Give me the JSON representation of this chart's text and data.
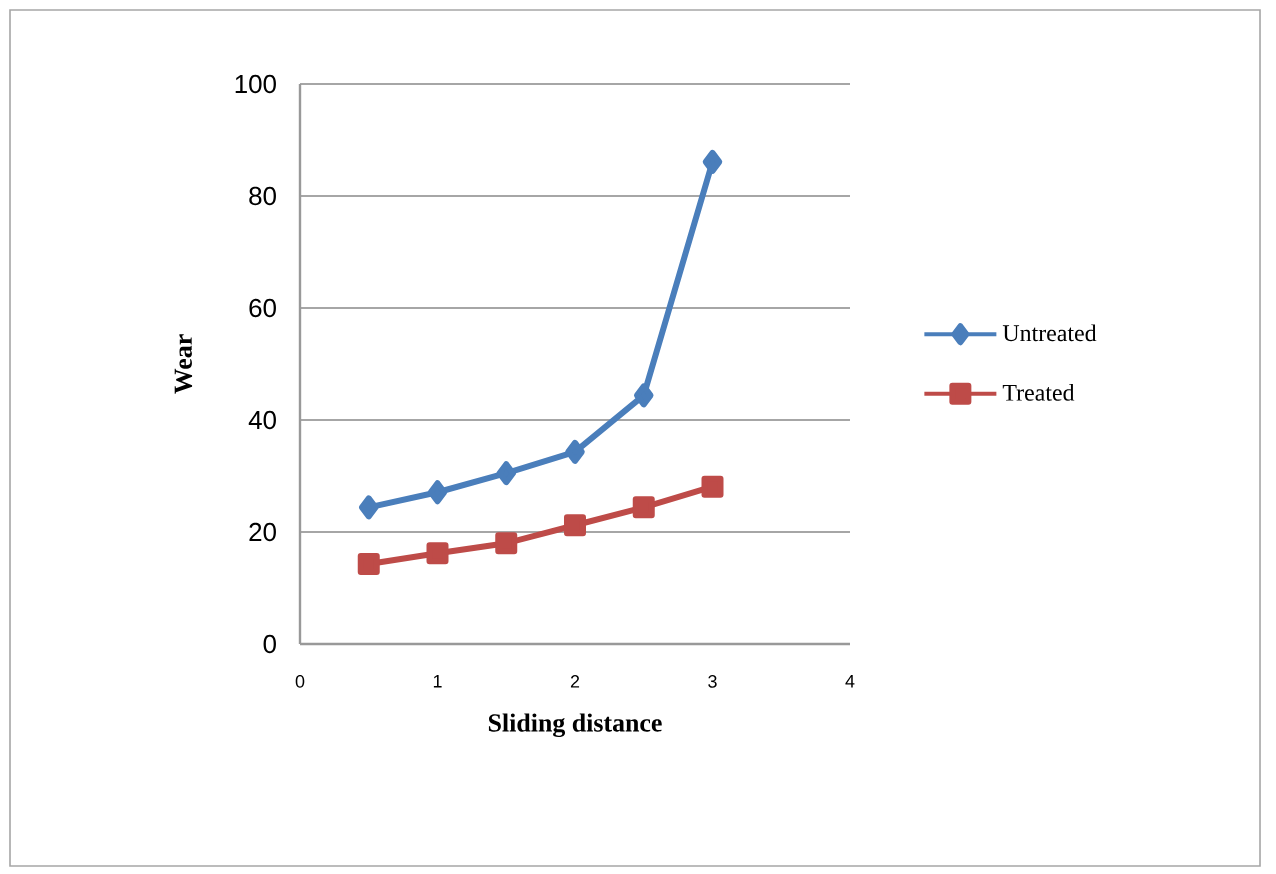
{
  "chart_data": {
    "type": "line",
    "xlabel": "Sliding distance",
    "ylabel": "Wear",
    "xlim": [
      0,
      4
    ],
    "xticks": [
      0,
      1,
      2,
      3,
      4
    ],
    "ylim": [
      0,
      100
    ],
    "yticks": [
      0,
      20,
      40,
      60,
      80,
      100
    ],
    "grid": "y",
    "legend": "right",
    "line_style": "solid",
    "series": [
      {
        "name": "Untreated",
        "color": "#4a7ebb",
        "marker": "diamond",
        "x": [
          0.5,
          1,
          1.5,
          2,
          2.5,
          3
        ],
        "values": [
          24.4,
          27.1,
          30.5,
          34.3,
          44.4,
          86.1
        ]
      },
      {
        "name": "Treated",
        "color": "#be4b48",
        "marker": "square",
        "x": [
          0.5,
          1,
          1.5,
          2,
          2.5,
          3
        ],
        "values": [
          14.3,
          16.2,
          18.0,
          21.2,
          24.4,
          28.1
        ]
      }
    ]
  }
}
